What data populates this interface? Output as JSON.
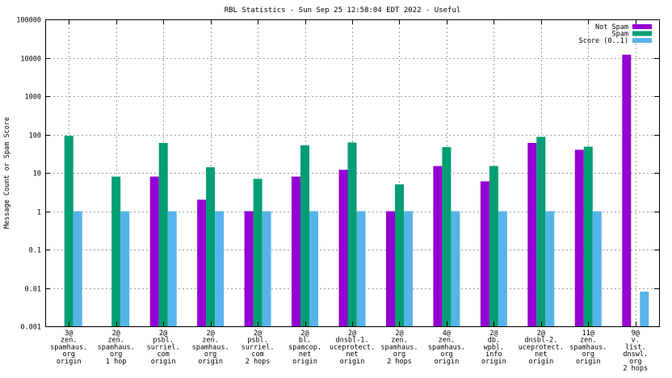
{
  "chart_data": {
    "type": "bar",
    "title": "RBL Statistics - Sun Sep 25 12:58:04 EDT 2022 - Useful",
    "ylabel": "Message Count or Spam Score",
    "xlabel": "",
    "yscale": "log",
    "ylim": [
      0.001,
      100000
    ],
    "yticks": [
      "0.001",
      "0.01",
      "0.1",
      "1",
      "10",
      "100",
      "1000",
      "10000",
      "100000"
    ],
    "grid": true,
    "legend_position": "top-right",
    "categories": [
      [
        "3@",
        "zen.",
        "spamhaus.",
        "org",
        "origin"
      ],
      [
        "2@",
        "zen.",
        "spamhaus.",
        "org",
        "1 hop"
      ],
      [
        "2@",
        "psbl.",
        "surriel.",
        "com",
        "origin"
      ],
      [
        "2@",
        "zen.",
        "spamhaus.",
        "org",
        "origin"
      ],
      [
        "2@",
        "psbl.",
        "surriel.",
        "com",
        "2 hops"
      ],
      [
        "2@",
        "bl.",
        "spamcop.",
        "net",
        "origin"
      ],
      [
        "2@",
        "dnsbl-1.",
        "uceprotect.",
        "net",
        "origin"
      ],
      [
        "2@",
        "zen.",
        "spamhaus.",
        "org",
        "2 hops"
      ],
      [
        "4@",
        "zen.",
        "spamhaus.",
        "org",
        "origin"
      ],
      [
        "2@",
        "db.",
        "wpbl.",
        "info",
        "origin"
      ],
      [
        "2@",
        "dnsbl-2.",
        "uceprotect.",
        "net",
        "origin"
      ],
      [
        "11@",
        "zen.",
        "spamhaus.",
        "org",
        "origin"
      ],
      [
        "9@",
        "v.",
        "list.",
        "dnswl.",
        "org",
        "2 hops"
      ]
    ],
    "series": [
      {
        "name": "Not Spam",
        "color": "#9400d3",
        "values": [
          null,
          null,
          8,
          2,
          1,
          8,
          12,
          1,
          15,
          6,
          60,
          40,
          12000
        ]
      },
      {
        "name": "Spam",
        "color": "#009e73",
        "values": [
          92,
          8,
          60,
          14,
          7,
          52,
          62,
          5,
          47,
          15,
          87,
          48,
          null
        ]
      },
      {
        "name": "Score (0..1)",
        "color": "#56b4e9",
        "values": [
          1,
          1,
          1,
          1,
          1,
          1,
          1,
          1,
          1,
          1,
          1,
          1,
          0.008
        ]
      }
    ]
  }
}
